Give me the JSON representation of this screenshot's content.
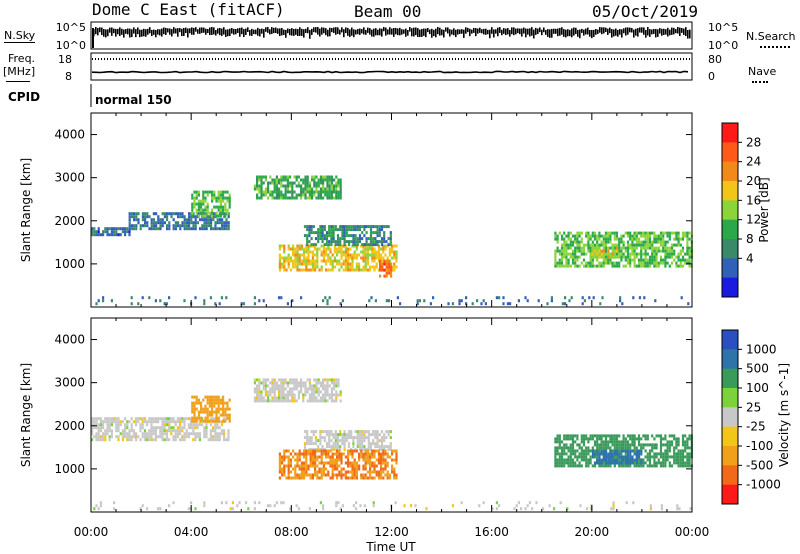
{
  "header": {
    "station": "Dome C East (fitACF)",
    "beam": "Beam 00",
    "date": "05/Oct/2019"
  },
  "top_panels": {
    "nsky_label": "N.Sky",
    "nsky_ticks": [
      "10^5",
      "10^0"
    ],
    "nsearch_label": "N.Search",
    "nsearch_ticks": [
      "10^5",
      "10^0"
    ],
    "freq_label_1": "Freq.",
    "freq_label_2": "[MHz]",
    "freq_ticks": [
      "18",
      "8"
    ],
    "nave_label": "Nave",
    "nave_ticks": [
      "80",
      "0"
    ],
    "cpid_label": "CPID",
    "cpid_value": "normal 150"
  },
  "power_colorbar": {
    "title": "Power [dB]",
    "ticks": [
      "28",
      "24",
      "20",
      "16",
      "12",
      "8",
      "4"
    ],
    "colors": [
      "#ff1a1a",
      "#ff5a1a",
      "#f08a1a",
      "#f2c51a",
      "#8cd43a",
      "#2aa84a",
      "#3a8a6a",
      "#3060b8",
      "#1a1ae0"
    ]
  },
  "velocity_colorbar": {
    "title": "Velocity [m s^-1]",
    "ticks": [
      "1000",
      "500",
      "100",
      "25",
      "-25",
      "-100",
      "-500",
      "-1000"
    ],
    "colors": [
      "#2a4fc0",
      "#2e74a8",
      "#3a9a5a",
      "#7cd23a",
      "#c8c8c8",
      "#f2c51a",
      "#f0a01a",
      "#f06a1a",
      "#ff1a1a"
    ]
  },
  "chart_data": [
    {
      "type": "heatmap",
      "title": "Power",
      "ylabel": "Slant Range [km]",
      "xlabel": "",
      "ylim": [
        0,
        4500
      ],
      "y_ticks": [
        1000,
        2000,
        3000,
        4000
      ],
      "x_tick_labels": [
        "00:00",
        "04:00",
        "08:00",
        "12:00",
        "16:00",
        "20:00",
        "00:00"
      ],
      "x_range_hours": [
        0,
        24
      ],
      "regions": [
        {
          "t": [
            0.0,
            1.5
          ],
          "r": [
            1650,
            1850
          ],
          "value_db": 5
        },
        {
          "t": [
            1.5,
            5.5
          ],
          "r": [
            1800,
            2200
          ],
          "value_db": 6
        },
        {
          "t": [
            4.0,
            5.5
          ],
          "r": [
            2100,
            2700
          ],
          "value_db": 14
        },
        {
          "t": [
            6.5,
            10.0
          ],
          "r": [
            2550,
            3050
          ],
          "value_db": 12
        },
        {
          "t": [
            7.5,
            12.2
          ],
          "r": [
            850,
            1450
          ],
          "value_db": 20
        },
        {
          "t": [
            8.5,
            12.0
          ],
          "r": [
            1450,
            1900
          ],
          "value_db": 8
        },
        {
          "t": [
            11.5,
            12.0
          ],
          "r": [
            750,
            1100
          ],
          "value_db": 28
        },
        {
          "t": [
            18.5,
            24.0
          ],
          "r": [
            950,
            1750
          ],
          "value_db": 14
        },
        {
          "t": [
            20.0,
            21.0
          ],
          "r": [
            1150,
            1400
          ],
          "value_db": 20
        },
        {
          "t": [
            0.0,
            24.0
          ],
          "r": [
            100,
            250
          ],
          "value_db": 6
        }
      ]
    },
    {
      "type": "heatmap",
      "title": "Velocity",
      "ylabel": "Slant Range [km]",
      "xlabel": "Time UT",
      "ylim": [
        0,
        4500
      ],
      "y_ticks": [
        1000,
        2000,
        3000,
        4000
      ],
      "x_tick_labels": [
        "00:00",
        "04:00",
        "08:00",
        "12:00",
        "16:00",
        "20:00",
        "00:00"
      ],
      "x_range_hours": [
        0,
        24
      ],
      "regions": [
        {
          "t": [
            0.0,
            5.5
          ],
          "r": [
            1650,
            2200
          ],
          "value_ms": 0
        },
        {
          "t": [
            4.0,
            5.5
          ],
          "r": [
            2100,
            2700
          ],
          "value_ms": -150
        },
        {
          "t": [
            6.5,
            10.0
          ],
          "r": [
            2550,
            3100
          ],
          "value_ms": 0
        },
        {
          "t": [
            8.5,
            12.0
          ],
          "r": [
            1450,
            1900
          ],
          "value_ms": 0
        },
        {
          "t": [
            7.5,
            12.2
          ],
          "r": [
            800,
            1450
          ],
          "value_ms": -300
        },
        {
          "t": [
            18.5,
            24.0
          ],
          "r": [
            1050,
            1800
          ],
          "value_ms": 120
        },
        {
          "t": [
            20.0,
            22.0
          ],
          "r": [
            1150,
            1450
          ],
          "value_ms": 700
        },
        {
          "t": [
            0.0,
            24.0
          ],
          "r": [
            100,
            250
          ],
          "value_ms": 0
        }
      ]
    }
  ]
}
